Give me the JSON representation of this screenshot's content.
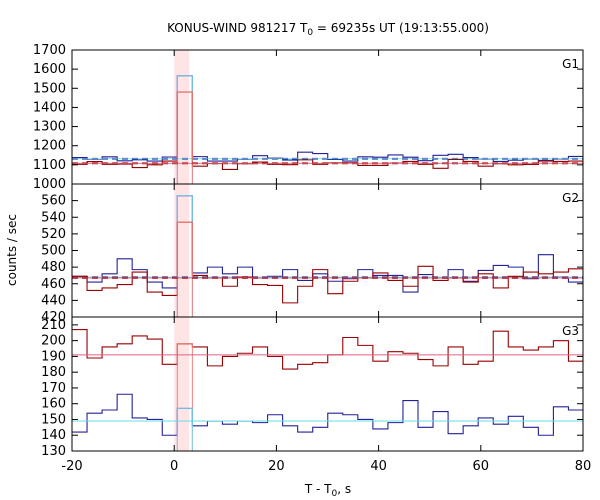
{
  "chart_data": {
    "type": "line",
    "title_main": "KONUS-WIND 981217 T",
    "title_sub": "0",
    "title_rest": " = 69235s UT (19:13:55.000)",
    "xlabel_main": "T - T",
    "xlabel_sub": "0",
    "xlabel_rest": ", s",
    "ylabel": "counts / sec",
    "xlim": [
      -20,
      80
    ],
    "xticks": [
      -20,
      0,
      20,
      40,
      60,
      80
    ],
    "highlight_interval": [
      0,
      2.944
    ],
    "panels": [
      {
        "label": "G1",
        "ylim": [
          1000,
          1700
        ],
        "yticks": [
          1000,
          1100,
          1200,
          1300,
          1400,
          1500,
          1600,
          1700
        ],
        "x_edges": [
          -20,
          -17.056,
          -14.112,
          -11.168,
          -8.224,
          -5.28,
          -2.336,
          0.608,
          3.552,
          6.496,
          9.44,
          12.384,
          15.328,
          18.272,
          21.216,
          24.16,
          27.104,
          30.048,
          32.992,
          35.936,
          38.88,
          41.824,
          44.768,
          47.712,
          50.656,
          53.6,
          56.544,
          59.488,
          62.432,
          65.376,
          68.32,
          71.264,
          74.208,
          77.152,
          80
        ],
        "series": [
          {
            "color": "#222299",
            "background": 1132,
            "values": [
              1138,
              1130,
              1142,
              1121,
              1126,
              1120,
              1141,
              1565,
              1143,
              1120,
              1120,
              1130,
              1148,
              1135,
              1125,
              1166,
              1159,
              1128,
              1120,
              1142,
              1140,
              1152,
              1140,
              1122,
              1150,
              1155,
              1138,
              1131,
              1118,
              1124,
              1131,
              1123,
              1131,
              1144
            ]
          },
          {
            "color": "#990000",
            "background": 1108,
            "values": [
              1103,
              1117,
              1103,
              1104,
              1086,
              1100,
              1120,
              1480,
              1093,
              1107,
              1076,
              1106,
              1115,
              1103,
              1101,
              1126,
              1103,
              1110,
              1111,
              1097,
              1097,
              1109,
              1118,
              1103,
              1082,
              1128,
              1118,
              1093,
              1106,
              1100,
              1102,
              1120,
              1118,
              1120
            ]
          }
        ]
      },
      {
        "label": "G2",
        "ylim": [
          420,
          580
        ],
        "yticks": [
          420,
          440,
          460,
          480,
          500,
          520,
          540,
          560
        ],
        "x_edges": [
          -20,
          -17.056,
          -14.112,
          -11.168,
          -8.224,
          -5.28,
          -2.336,
          0.608,
          3.552,
          6.496,
          9.44,
          12.384,
          15.328,
          18.272,
          21.216,
          24.16,
          27.104,
          30.048,
          32.992,
          35.936,
          38.88,
          41.824,
          44.768,
          47.712,
          50.656,
          53.6,
          56.544,
          59.488,
          62.432,
          65.376,
          68.32,
          71.264,
          74.208,
          77.152,
          80
        ],
        "series": [
          {
            "color": "#222299",
            "background": 468,
            "values": [
              469,
              462,
              472,
              490,
              477,
              462,
              455,
              566,
              473,
              480,
              472,
              480,
              467,
              469,
              477,
              464,
              472,
              463,
              466,
              477,
              470,
              470,
              450,
              471,
              467,
              477,
              463,
              476,
              482,
              480,
              466,
              495,
              468,
              462
            ]
          },
          {
            "color": "#990000",
            "background": 467,
            "values": [
              469,
              452,
              455,
              459,
              474,
              450,
              446,
              534,
              470,
              467,
              457,
              468,
              459,
              458,
              437,
              457,
              477,
              448,
              463,
              467,
              473,
              464,
              457,
              481,
              464,
              467,
              462,
              472,
              455,
              469,
              474,
              472,
              474,
              478
            ]
          }
        ]
      },
      {
        "label": "G3",
        "ylim": [
          130,
          215
        ],
        "yticks": [
          130,
          140,
          150,
          160,
          170,
          180,
          190,
          200,
          210
        ],
        "x_edges": [
          -20,
          -17.056,
          -14.112,
          -11.168,
          -8.224,
          -5.28,
          -2.336,
          0.608,
          3.552,
          6.496,
          9.44,
          12.384,
          15.328,
          18.272,
          21.216,
          24.16,
          27.104,
          30.048,
          32.992,
          35.936,
          38.88,
          41.824,
          44.768,
          47.712,
          50.656,
          53.6,
          56.544,
          59.488,
          62.432,
          65.376,
          68.32,
          71.264,
          74.208,
          77.152,
          80
        ],
        "series": [
          {
            "color": "#990000",
            "background": 191,
            "values": [
              207,
              189,
              196,
              198,
              203,
              201,
              185,
              198,
              196,
              184,
              190,
              192,
              196,
              190,
              182,
              185,
              186,
              191,
              202,
              197,
              187,
              193,
              192,
              188,
              184,
              196,
              185,
              187,
              206,
              196,
              194,
              196,
              200,
              187
            ]
          },
          {
            "color": "#222299",
            "background": 149,
            "values": [
              142,
              154,
              156,
              166,
              151,
              150,
              140,
              157,
              146,
              149,
              147,
              149,
              148,
              153,
              146,
              142,
              145,
              154,
              153,
              150,
              144,
              148,
              162,
              145,
              155,
              141,
              146,
              151,
              147,
              152,
              145,
              140,
              158,
              156
            ]
          }
        ]
      }
    ]
  }
}
